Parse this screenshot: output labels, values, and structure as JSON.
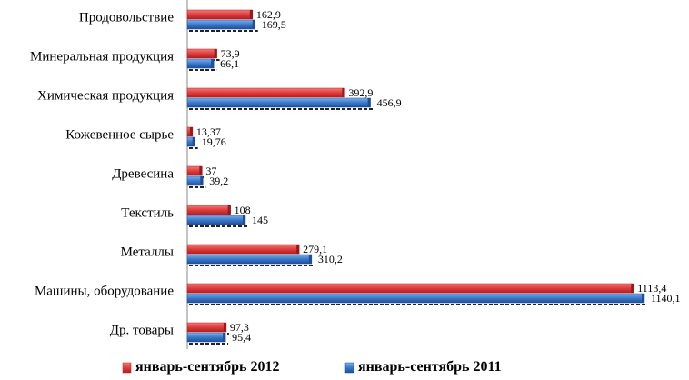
{
  "chart_data": {
    "type": "bar",
    "orientation": "horizontal",
    "categories": [
      "Продовольствие",
      "Минеральная продукция",
      "Химическая продукция",
      "Кожевенное сырье",
      "Древесина",
      "Текстиль",
      "Металлы",
      "Машины, оборудование",
      "Др. товары"
    ],
    "series": [
      {
        "name": "январь-сентябрь 2012",
        "color": "#e03c3c",
        "values": [
          162.9,
          73.9,
          392.9,
          13.37,
          37,
          108,
          279.1,
          1113.4,
          97.3
        ],
        "labels": [
          "162,9",
          "73,9",
          "392,9",
          "13,37",
          "37",
          "108",
          "279,1",
          "1113,4",
          "97,3"
        ]
      },
      {
        "name": "январь-сентябрь 2011",
        "color": "#3a78c8",
        "values": [
          169.5,
          66.1,
          456.9,
          19.76,
          39.2,
          145,
          310.2,
          1140.1,
          95.4
        ],
        "labels": [
          "169,5",
          "66,1",
          "456,9",
          "19,76",
          "39,2",
          "145",
          "310,2",
          "1140,1",
          "95,4"
        ]
      }
    ],
    "xlim": [
      0,
      1140.1
    ],
    "grid": false,
    "legend": "bottom"
  }
}
